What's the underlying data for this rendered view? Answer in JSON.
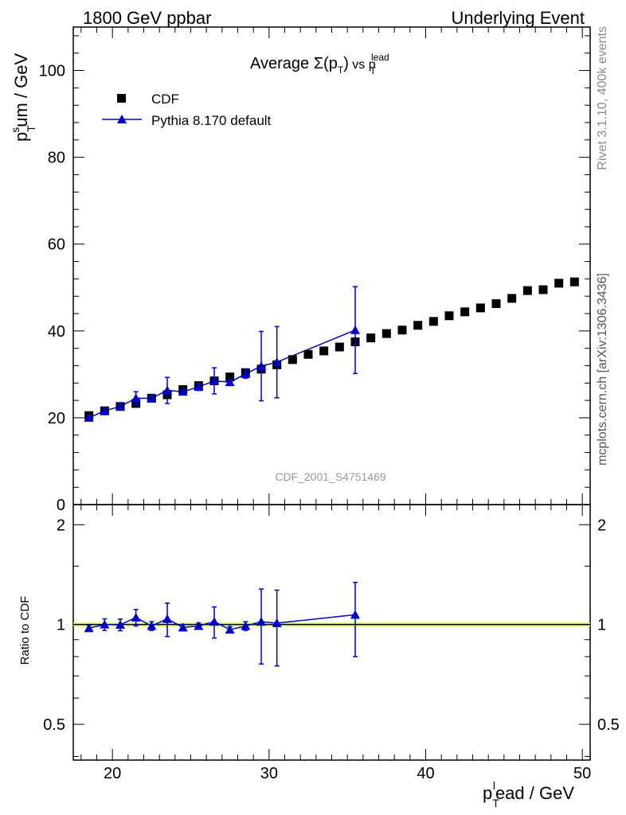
{
  "header": {
    "left": "1800 GeV ppbar",
    "right": "Underlying Event"
  },
  "side": {
    "rivet": "Rivet 3.1.10,  400k events",
    "mcplots": "mcplots.cern.ch [arXiv:1306.3436]"
  },
  "watermark": "CDF_2001_S4751469",
  "colors": {
    "data": "#000000",
    "mc": "#0000cc",
    "band": "#ccff66"
  },
  "chart_data": [
    {
      "type": "scatter",
      "title": "Average Σ(pT) vs pT lead",
      "title_parts": {
        "pre": "Average ",
        "sigma": "Σ(p",
        "sub1": "T",
        "close": ")",
        "vs": " vs p",
        "sub2": "T",
        "sup2": "lead"
      },
      "ylabel": "pTsum / GeV",
      "ylabel_parts": {
        "p": "p",
        "sub": "T",
        "sup": "s",
        "rest": "um / GeV"
      },
      "xlabel": "pTlead / GeV",
      "xlim": [
        17.5,
        50.5
      ],
      "ylim": [
        0,
        110
      ],
      "y_ticks": [
        0,
        20,
        40,
        60,
        80,
        100
      ],
      "y_tick_labels": [
        "0",
        "20",
        "40",
        "60",
        "80",
        "100"
      ],
      "legend": {
        "position": "top-left",
        "entries": [
          "CDF",
          "Pythia 8.170 default"
        ]
      },
      "series": [
        {
          "name": "CDF",
          "marker": "square",
          "x": [
            18.5,
            19.5,
            20.5,
            21.5,
            22.5,
            23.5,
            24.5,
            25.5,
            26.5,
            27.5,
            28.5,
            29.5,
            30.5,
            31.5,
            32.5,
            33.5,
            34.5,
            35.5,
            36.5,
            37.5,
            38.5,
            39.5,
            40.5,
            41.5,
            42.5,
            43.5,
            44.5,
            45.5,
            46.5,
            47.5,
            48.5,
            49.5
          ],
          "y": [
            20.5,
            21.6,
            22.6,
            23.3,
            24.5,
            25.3,
            26.5,
            27.4,
            28.5,
            29.4,
            30.4,
            31.2,
            32.2,
            33.4,
            34.6,
            35.4,
            36.3,
            37.5,
            38.4,
            39.4,
            40.2,
            41.3,
            42.2,
            43.5,
            44.4,
            45.3,
            46.3,
            47.5,
            49.3,
            49.5,
            51.0,
            51.3
          ]
        },
        {
          "name": "Pythia 8.170 default",
          "marker": "triangle",
          "x": [
            18.5,
            19.5,
            20.5,
            21.5,
            22.5,
            23.5,
            24.5,
            25.5,
            26.5,
            27.5,
            28.5,
            29.5,
            30.5,
            35.5
          ],
          "y": [
            20.0,
            21.6,
            22.6,
            24.5,
            24.5,
            26.3,
            26.0,
            27.1,
            28.5,
            28.2,
            30.1,
            31.9,
            32.8,
            40.2
          ],
          "err": [
            0.5,
            0.8,
            0.8,
            1.5,
            0.6,
            3.0,
            0.6,
            0.8,
            3.0,
            0.6,
            1.0,
            8.0,
            8.2,
            10.0
          ]
        }
      ]
    },
    {
      "type": "scatter",
      "ylabel": "Ratio to CDF",
      "xlim": [
        17.5,
        50.5
      ],
      "ylim": [
        0.39,
        2.3
      ],
      "y_log": true,
      "y_ticks": [
        0.5,
        1,
        2
      ],
      "y_tick_labels": [
        "0.5",
        "1",
        "2"
      ],
      "x_ticks": [
        20,
        30,
        40,
        50
      ],
      "x_tick_labels": [
        "20",
        "30",
        "40",
        "50"
      ],
      "reference_line": 1,
      "series": [
        {
          "name": "Pythia 8.170 default",
          "marker": "triangle",
          "x": [
            18.5,
            19.5,
            20.5,
            21.5,
            22.5,
            23.5,
            24.5,
            25.5,
            26.5,
            27.5,
            28.5,
            29.5,
            30.5,
            35.5
          ],
          "y": [
            0.975,
            1.0,
            0.998,
            1.05,
            0.99,
            1.04,
            0.98,
            0.99,
            1.02,
            0.965,
            0.99,
            1.02,
            1.01,
            1.07
          ],
          "err": [
            0.02,
            0.04,
            0.04,
            0.06,
            0.03,
            0.12,
            0.02,
            0.02,
            0.11,
            0.02,
            0.03,
            0.26,
            0.26,
            0.27
          ]
        }
      ]
    }
  ]
}
